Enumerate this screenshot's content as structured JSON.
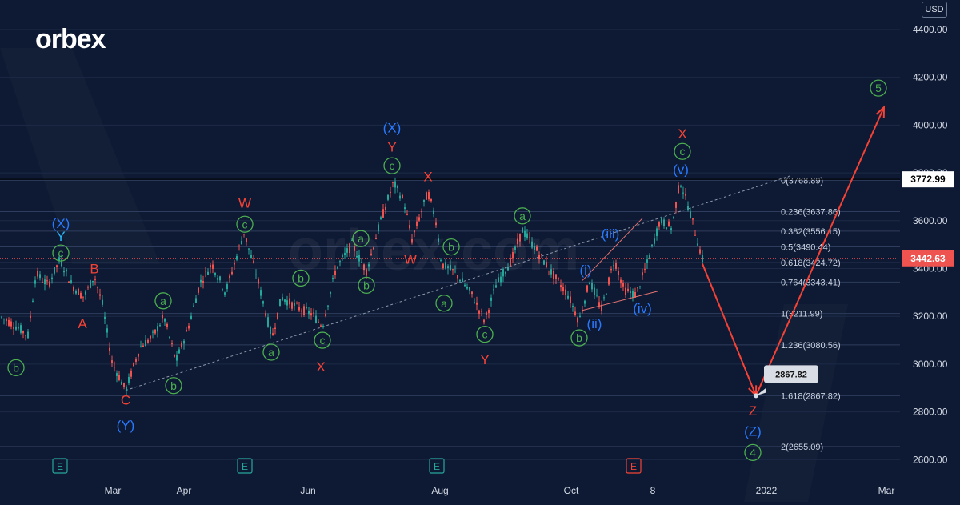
{
  "brand": {
    "logo_text": "orbex",
    "watermark": "orbex.com"
  },
  "currency": "USD",
  "colors": {
    "background": "#0e1a33",
    "up": "#26a69a",
    "down": "#ef5350",
    "grid": "#1c2a48",
    "wave_green": "#4caf50",
    "wave_red": "#f44336",
    "wave_blue": "#2979ff",
    "wave_cyan": "#29b6f6",
    "fib": "#c9d1e0"
  },
  "chart_data": {
    "type": "candlestick",
    "title": "",
    "xlabel": "",
    "ylabel": "",
    "ylim": [
      2520,
      4520
    ],
    "y_ticks": [
      2600,
      2800,
      3000,
      3200,
      3400,
      3600,
      3800,
      4000,
      4200,
      4400
    ],
    "y_tick_labels": [
      "2600.00",
      "2800.00",
      "3000.00",
      "3200.00",
      "3400.00",
      "3600.00",
      "3800.00",
      "4000.00",
      "4200.00",
      "4400.00"
    ],
    "x_tick_labels": [
      "Mar",
      "Apr",
      "Jun",
      "Aug",
      "Oct",
      "8",
      "2022",
      "Mar"
    ],
    "price_path": [
      [
        0,
        3200
      ],
      [
        20,
        3160
      ],
      [
        35,
        3120
      ],
      [
        45,
        3380
      ],
      [
        60,
        3330
      ],
      [
        75,
        3440
      ],
      [
        90,
        3330
      ],
      [
        105,
        3280
      ],
      [
        118,
        3370
      ],
      [
        128,
        3250
      ],
      [
        140,
        3010
      ],
      [
        157,
        2890
      ],
      [
        175,
        3070
      ],
      [
        192,
        3120
      ],
      [
        205,
        3200
      ],
      [
        220,
        3010
      ],
      [
        235,
        3150
      ],
      [
        250,
        3340
      ],
      [
        265,
        3420
      ],
      [
        282,
        3300
      ],
      [
        305,
        3550
      ],
      [
        320,
        3380
      ],
      [
        340,
        3110
      ],
      [
        352,
        3280
      ],
      [
        370,
        3240
      ],
      [
        390,
        3210
      ],
      [
        403,
        3160
      ],
      [
        420,
        3400
      ],
      [
        440,
        3500
      ],
      [
        458,
        3390
      ],
      [
        475,
        3590
      ],
      [
        492,
        3760
      ],
      [
        505,
        3680
      ],
      [
        515,
        3520
      ],
      [
        535,
        3720
      ],
      [
        545,
        3600
      ],
      [
        552,
        3420
      ],
      [
        570,
        3380
      ],
      [
        590,
        3290
      ],
      [
        606,
        3180
      ],
      [
        620,
        3330
      ],
      [
        640,
        3440
      ],
      [
        653,
        3560
      ],
      [
        670,
        3480
      ],
      [
        690,
        3380
      ],
      [
        710,
        3290
      ],
      [
        724,
        3180
      ],
      [
        737,
        3350
      ],
      [
        752,
        3230
      ],
      [
        768,
        3440
      ],
      [
        780,
        3310
      ],
      [
        795,
        3290
      ],
      [
        810,
        3430
      ],
      [
        825,
        3600
      ],
      [
        840,
        3570
      ],
      [
        850,
        3770
      ],
      [
        862,
        3640
      ],
      [
        878,
        3440
      ]
    ],
    "last_price": 3442.63,
    "last_price_label": "3442.63",
    "fib_line_price": 3772.99,
    "fib_line_label": "3772.99",
    "target_price": 2867.82,
    "target_label": "2867.82",
    "fib_levels": [
      {
        "price": 3768.89,
        "label": "0(3768.89)"
      },
      {
        "price": 3637.86,
        "label": "0.236(3637.86)"
      },
      {
        "price": 3556.15,
        "label": "0.382(3556.15)"
      },
      {
        "price": 3490.44,
        "label": "0.5(3490.44)"
      },
      {
        "price": 3424.72,
        "label": "0.618(3424.72)"
      },
      {
        "price": 3343.41,
        "label": "0.764(3343.41)"
      },
      {
        "price": 3211.99,
        "label": "1(3211.99)"
      },
      {
        "price": 3080.56,
        "label": "1.236(3080.56)"
      },
      {
        "price": 2867.82,
        "label": "1.618(2867.82)"
      },
      {
        "price": 2655.09,
        "label": "2(2655.09)"
      }
    ],
    "forecast_path": [
      [
        878,
        3420
      ],
      [
        945,
        2868
      ],
      [
        1105,
        4075
      ]
    ],
    "earnings_markers": [
      {
        "x": 75,
        "label": "E",
        "color": "green"
      },
      {
        "x": 306,
        "label": "E",
        "color": "green"
      },
      {
        "x": 546,
        "label": "E",
        "color": "green"
      },
      {
        "x": 792,
        "label": "E",
        "color": "red"
      }
    ],
    "wave_labels": [
      {
        "text": "b",
        "circled": true,
        "color": "green",
        "x": 20,
        "price": 2985
      },
      {
        "text": "(X)",
        "circled": false,
        "color": "blue",
        "x": 76,
        "price": 3590
      },
      {
        "text": "Y",
        "circled": false,
        "color": "cyan",
        "x": 76,
        "price": 3535
      },
      {
        "text": "c",
        "circled": true,
        "color": "green",
        "x": 76,
        "price": 3465
      },
      {
        "text": "B",
        "circled": false,
        "color": "red",
        "x": 118,
        "price": 3400
      },
      {
        "text": "A",
        "circled": false,
        "color": "red",
        "x": 103,
        "price": 3170
      },
      {
        "text": "C",
        "circled": false,
        "color": "red",
        "x": 157,
        "price": 2850
      },
      {
        "text": "(Y)",
        "circled": false,
        "color": "blue",
        "x": 157,
        "price": 2745
      },
      {
        "text": "a",
        "circled": true,
        "color": "green",
        "x": 204,
        "price": 3265
      },
      {
        "text": "b",
        "circled": true,
        "color": "green",
        "x": 217,
        "price": 2910
      },
      {
        "text": "W",
        "circled": false,
        "color": "red",
        "x": 306,
        "price": 3675
      },
      {
        "text": "c",
        "circled": true,
        "color": "green",
        "x": 306,
        "price": 3585
      },
      {
        "text": "a",
        "circled": true,
        "color": "green",
        "x": 339,
        "price": 3050
      },
      {
        "text": "b",
        "circled": true,
        "color": "green",
        "x": 376,
        "price": 3360
      },
      {
        "text": "c",
        "circled": true,
        "color": "green",
        "x": 403,
        "price": 3100
      },
      {
        "text": "X",
        "circled": false,
        "color": "red",
        "x": 401,
        "price": 2990
      },
      {
        "text": "a",
        "circled": true,
        "color": "green",
        "x": 451,
        "price": 3525
      },
      {
        "text": "b",
        "circled": true,
        "color": "green",
        "x": 458,
        "price": 3330
      },
      {
        "text": "(X)",
        "circled": false,
        "color": "blue",
        "x": 490,
        "price": 3990
      },
      {
        "text": "Y",
        "circled": false,
        "color": "red",
        "x": 490,
        "price": 3910
      },
      {
        "text": "c",
        "circled": true,
        "color": "green",
        "x": 490,
        "price": 3830
      },
      {
        "text": "X",
        "circled": false,
        "color": "red",
        "x": 535,
        "price": 3785
      },
      {
        "text": "W",
        "circled": false,
        "color": "red",
        "x": 513,
        "price": 3440
      },
      {
        "text": "b",
        "circled": true,
        "color": "green",
        "x": 564,
        "price": 3490
      },
      {
        "text": "a",
        "circled": true,
        "color": "green",
        "x": 555,
        "price": 3255
      },
      {
        "text": "c",
        "circled": true,
        "color": "green",
        "x": 606,
        "price": 3125
      },
      {
        "text": "Y",
        "circled": false,
        "color": "red",
        "x": 606,
        "price": 3020
      },
      {
        "text": "a",
        "circled": true,
        "color": "green",
        "x": 653,
        "price": 3620
      },
      {
        "text": "(iii)",
        "circled": false,
        "color": "blue",
        "x": 763,
        "price": 3545
      },
      {
        "text": "(i)",
        "circled": false,
        "color": "blue",
        "x": 732,
        "price": 3395
      },
      {
        "text": "(iv)",
        "circled": false,
        "color": "blue",
        "x": 803,
        "price": 3235
      },
      {
        "text": "(ii)",
        "circled": false,
        "color": "blue",
        "x": 743,
        "price": 3170
      },
      {
        "text": "b",
        "circled": true,
        "color": "green",
        "x": 724,
        "price": 3110
      },
      {
        "text": "X",
        "circled": false,
        "color": "red",
        "x": 853,
        "price": 3965
      },
      {
        "text": "c",
        "circled": true,
        "color": "green",
        "x": 853,
        "price": 3890
      },
      {
        "text": "(v)",
        "circled": false,
        "color": "blue",
        "x": 851,
        "price": 3815
      },
      {
        "text": "5",
        "circled": true,
        "color": "green",
        "x": 1098,
        "price": 4155
      },
      {
        "text": "Z",
        "circled": false,
        "color": "red",
        "x": 941,
        "price": 2805
      },
      {
        "text": "(Z)",
        "circled": false,
        "color": "blue",
        "x": 941,
        "price": 2720
      },
      {
        "text": "4",
        "circled": true,
        "color": "green",
        "x": 941,
        "price": 2630
      }
    ]
  }
}
